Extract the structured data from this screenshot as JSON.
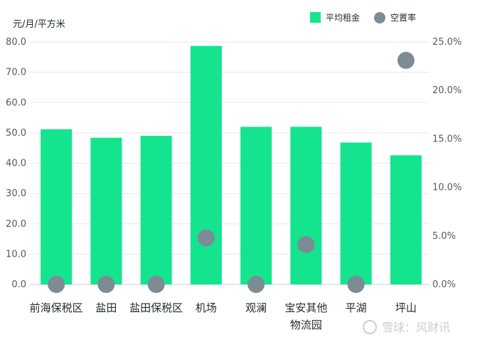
{
  "chart_data": {
    "type": "bar",
    "unit_label": "元/月/平方米",
    "categories": [
      [
        "前海保税区"
      ],
      [
        "盐田"
      ],
      [
        "盐田保税区"
      ],
      [
        "机场"
      ],
      [
        "观澜"
      ],
      [
        "宝安其他",
        "物流园"
      ],
      [
        "平湖"
      ],
      [
        "坪山"
      ]
    ],
    "series": [
      {
        "name": "平均租金",
        "kind": "bar",
        "axis": "left",
        "color": "#14e48e",
        "values": [
          51.2,
          48.4,
          49.0,
          78.7,
          52.0,
          52.0,
          46.8,
          42.6
        ]
      },
      {
        "name": "空置率",
        "kind": "scatter",
        "axis": "right",
        "color": "#7d8b94",
        "values": [
          0.0,
          0.0,
          0.0,
          4.8,
          0.0,
          4.1,
          0.0,
          23.1
        ]
      }
    ],
    "left_axis": {
      "min": 0,
      "max": 80,
      "ticks": [
        "0.0",
        "10.0",
        "20.0",
        "30.0",
        "40.0",
        "50.0",
        "60.0",
        "70.0",
        "80.0"
      ]
    },
    "right_axis": {
      "min": 0,
      "max": 25,
      "ticks": [
        "0.0%",
        "5.0%",
        "10.0%",
        "15.0%",
        "20.0%",
        "25.0%"
      ]
    },
    "grid": true,
    "legend_position": "top-right"
  },
  "watermark": "雪球：风财讯"
}
